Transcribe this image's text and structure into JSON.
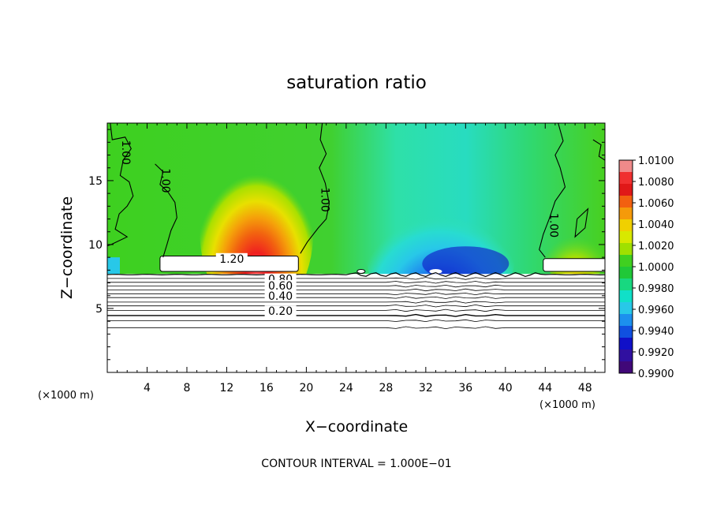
{
  "chart_data": {
    "type": "heatmap",
    "title": "saturation ratio",
    "xlabel": "X−coordinate",
    "ylabel": "Z−coordinate",
    "x_unit_left": "(×1000 m)",
    "x_unit_right": "(×1000 m)",
    "xlim": [
      0,
      50
    ],
    "ylim": [
      0,
      19.5
    ],
    "x_ticks": [
      4,
      8,
      12,
      16,
      20,
      24,
      28,
      32,
      36,
      40,
      44,
      48
    ],
    "y_ticks": [
      5,
      10,
      15
    ],
    "colorbar": {
      "min": 0.99,
      "max": 1.01,
      "labels": [
        "1.0100",
        "1.0080",
        "1.0060",
        "1.0040",
        "1.0020",
        "1.0000",
        "0.9980",
        "0.9960",
        "0.9940",
        "0.9920",
        "0.9900"
      ],
      "colors": [
        "#f08a8a",
        "#f03030",
        "#e01818",
        "#f26010",
        "#f59a0a",
        "#f0d000",
        "#d8e800",
        "#a0e000",
        "#40d020",
        "#20c838",
        "#18d880",
        "#10e0c8",
        "#28c8e8",
        "#1c90ee",
        "#1050e0",
        "#1010c8",
        "#3010a0",
        "#400878"
      ]
    },
    "contour_lines": [
      {
        "label": "1.00",
        "at": [
          [
            1.5,
            17.2
          ],
          [
            5.5,
            15.0
          ],
          [
            21.5,
            13.5
          ],
          [
            44.5,
            11.5
          ]
        ]
      },
      {
        "label": "1.20",
        "at": [
          [
            12.5,
            8.9
          ]
        ]
      },
      {
        "label": "0.80",
        "at": [
          [
            17.4,
            7.3
          ]
        ]
      },
      {
        "label": "0.60",
        "at": [
          [
            17.4,
            6.8
          ]
        ]
      },
      {
        "label": "0.40",
        "at": [
          [
            17.4,
            6.0
          ]
        ]
      },
      {
        "label": "0.20",
        "at": [
          [
            17.4,
            4.8
          ]
        ]
      }
    ],
    "footer": "CONTOUR INTERVAL = 1.000E−01"
  }
}
